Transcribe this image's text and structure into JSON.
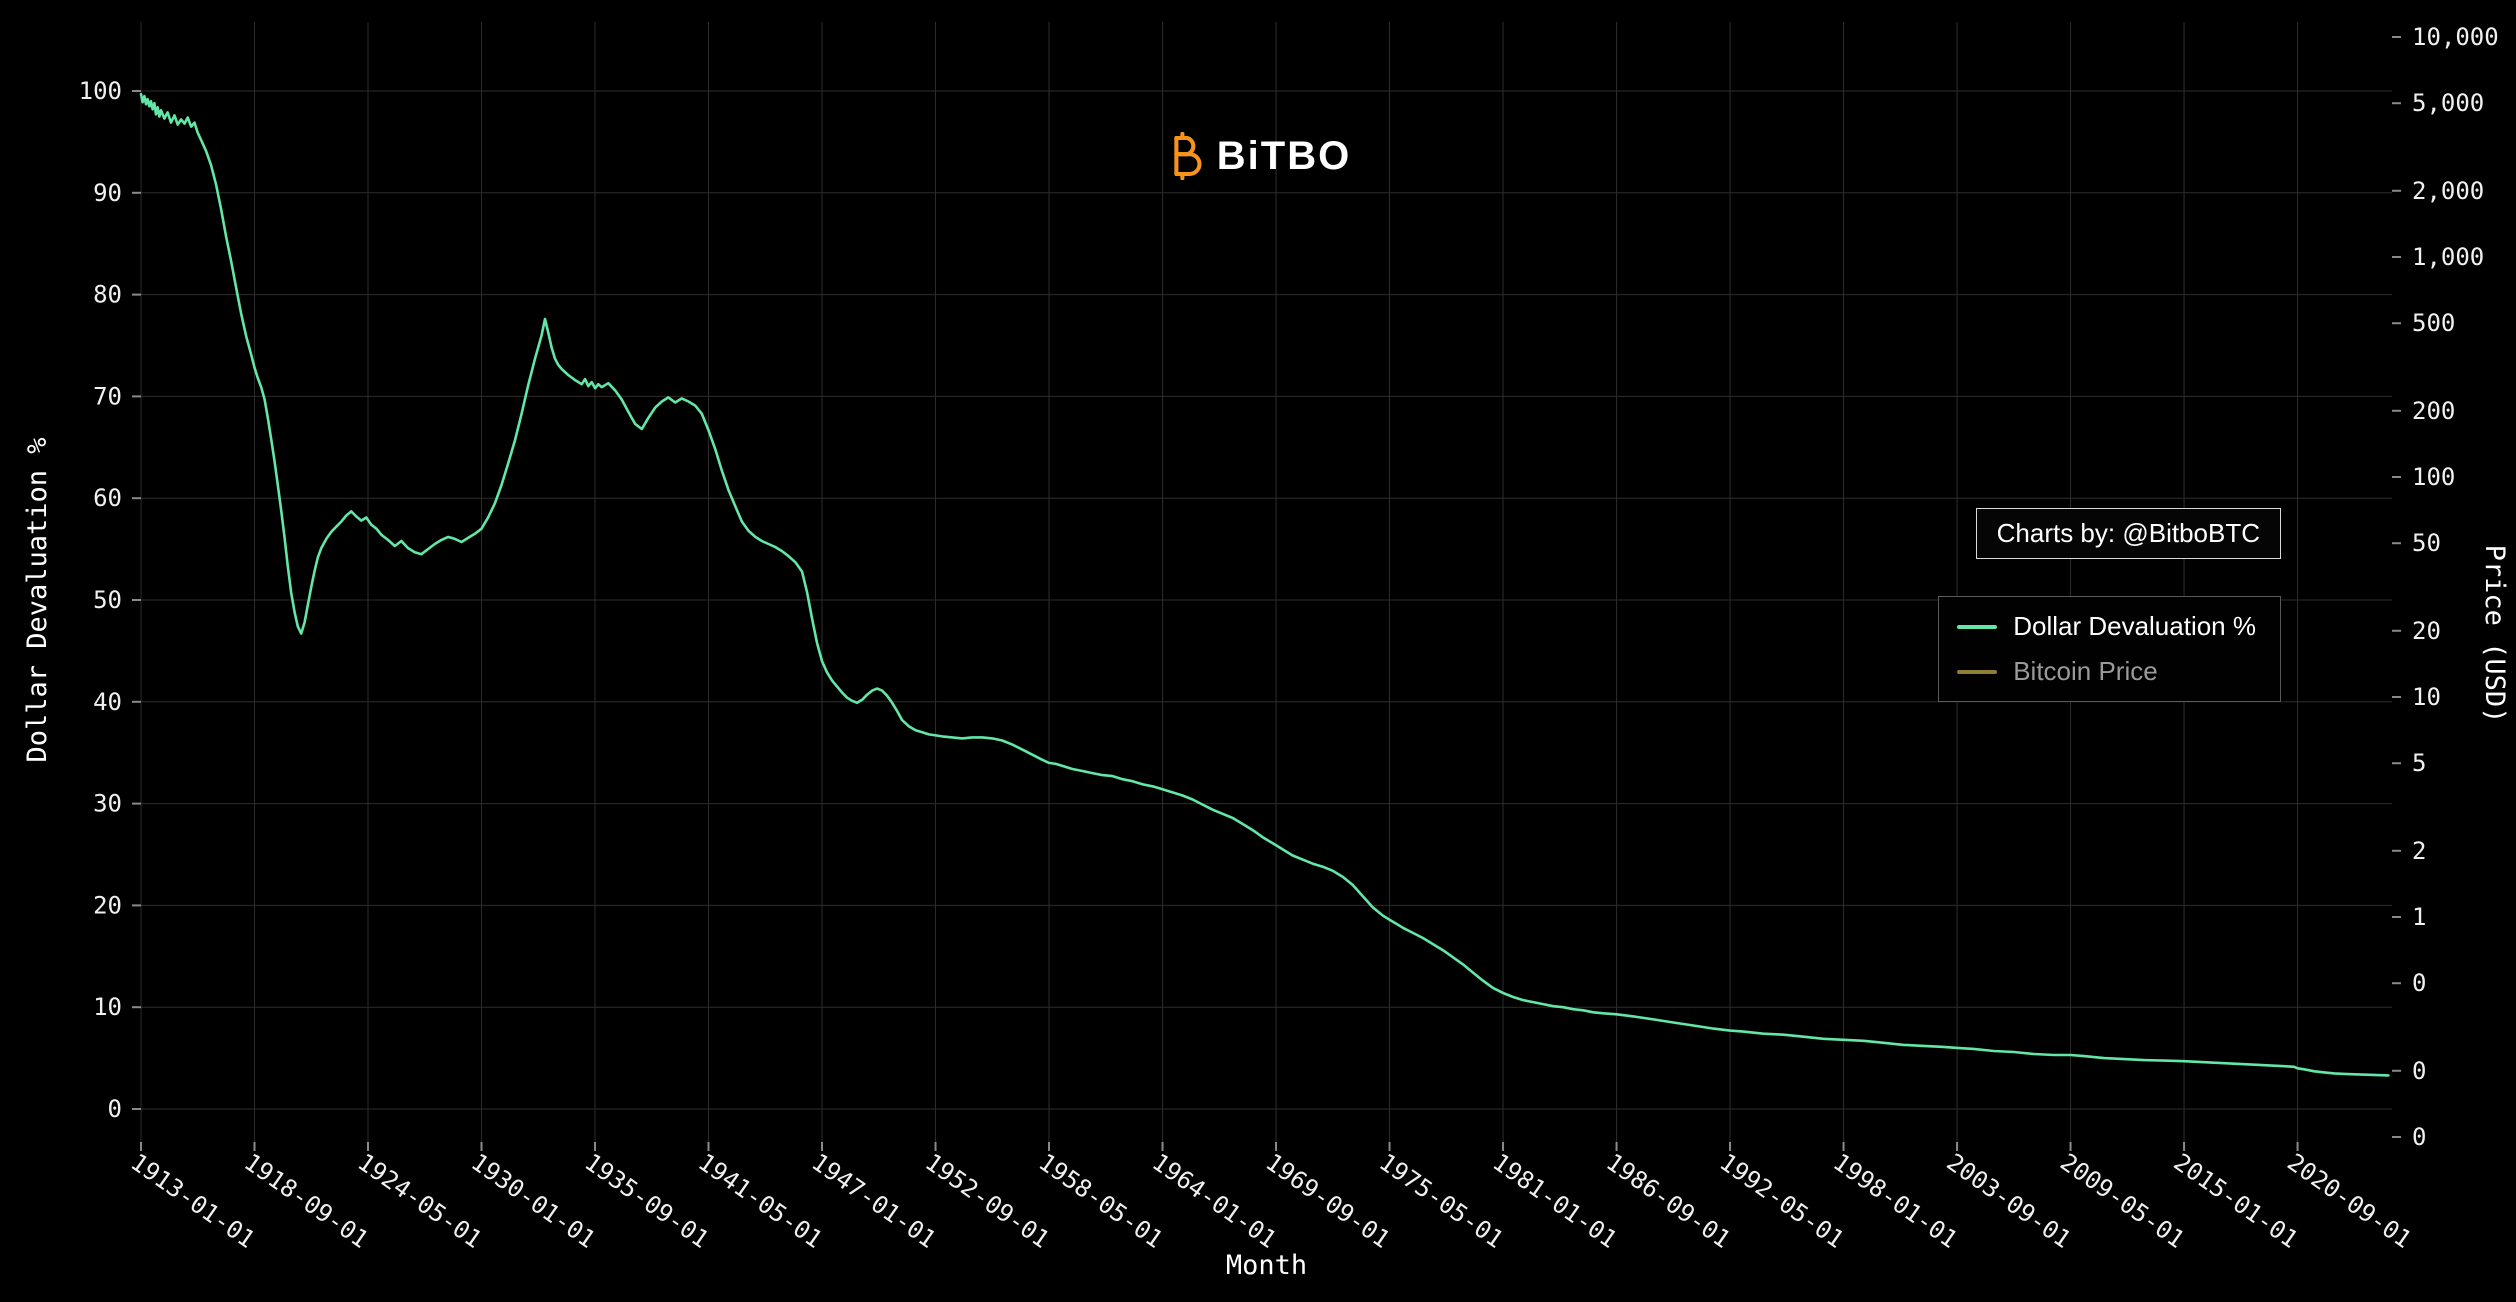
{
  "header": {
    "logo_text": "BiTBO",
    "logo_color": "#f7931a"
  },
  "attribution": {
    "label": "Charts by: @BitboBTC"
  },
  "legend": {
    "position": "right",
    "items": [
      {
        "label": "Dollar Devaluation %",
        "color": "#63e6a6",
        "text_color": "#ffffff",
        "active": true
      },
      {
        "label": "Bitcoin Price",
        "color": "#8f7c35",
        "text_color": "#9a9a9a",
        "active": false
      }
    ]
  },
  "chart_data": {
    "type": "line",
    "title": "",
    "background": "#000000",
    "grid": true,
    "grid_color": "#2d2d2d",
    "text_color": "#f0f0f0",
    "xlabel": "Month",
    "x_axis": {
      "label": "Month",
      "tick_labels": [
        "1913-01-01",
        "1918-09-01",
        "1924-05-01",
        "1930-01-01",
        "1935-09-01",
        "1941-05-01",
        "1947-01-01",
        "1952-09-01",
        "1958-05-01",
        "1964-01-01",
        "1969-09-01",
        "1975-05-01",
        "1981-01-01",
        "1986-09-01",
        "1992-05-01",
        "1998-01-01",
        "2003-09-01",
        "2009-05-01",
        "2015-01-01",
        "2020-09-01"
      ],
      "tick_years": [
        1913.0,
        1918.667,
        1924.333,
        1930.0,
        1935.667,
        1941.333,
        1947.0,
        1952.667,
        1958.333,
        1964.0,
        1969.667,
        1975.333,
        1981.0,
        1986.667,
        1992.333,
        1998.0,
        2003.667,
        2009.333,
        2015.0,
        2020.667
      ],
      "range_years": [
        1913.0,
        2025.4
      ]
    },
    "left_axis": {
      "label": "Dollar Devaluation %",
      "ticks": [
        0,
        10,
        20,
        30,
        40,
        50,
        60,
        70,
        80,
        90,
        100
      ],
      "range": [
        0,
        100
      ]
    },
    "right_axis": {
      "label": "Price (USD)",
      "scale": "log",
      "tick_labels": [
        "10,000",
        "5,000",
        "2,000",
        "1,000",
        "500",
        "200",
        "100",
        "50",
        "20",
        "10",
        "5",
        "2",
        "1",
        "0",
        "0",
        "0"
      ],
      "tick_values": [
        10000,
        5000,
        2000,
        1000,
        500,
        200,
        100,
        50,
        20,
        10,
        5,
        2,
        1,
        0.5,
        0.2,
        0.1
      ]
    },
    "series": [
      {
        "name": "Dollar Devaluation %",
        "color": "#63e6a6",
        "visible": true,
        "axis": "left",
        "points": [
          [
            1913.0,
            99.7
          ],
          [
            1913.08,
            98.9
          ],
          [
            1913.17,
            99.5
          ],
          [
            1913.25,
            98.7
          ],
          [
            1913.33,
            99.2
          ],
          [
            1913.42,
            98.5
          ],
          [
            1913.5,
            99.0
          ],
          [
            1913.58,
            98.2
          ],
          [
            1913.67,
            98.8
          ],
          [
            1913.75,
            97.7
          ],
          [
            1913.83,
            98.4
          ],
          [
            1913.92,
            97.5
          ],
          [
            1914.0,
            98.1
          ],
          [
            1914.17,
            97.3
          ],
          [
            1914.33,
            97.9
          ],
          [
            1914.5,
            96.9
          ],
          [
            1914.67,
            97.6
          ],
          [
            1914.83,
            96.7
          ],
          [
            1915.0,
            97.2
          ],
          [
            1915.17,
            96.8
          ],
          [
            1915.33,
            97.4
          ],
          [
            1915.5,
            96.5
          ],
          [
            1915.67,
            96.9
          ],
          [
            1915.83,
            95.9
          ],
          [
            1916.0,
            95.2
          ],
          [
            1916.25,
            94.1
          ],
          [
            1916.5,
            92.7
          ],
          [
            1916.75,
            90.8
          ],
          [
            1917.0,
            88.4
          ],
          [
            1917.25,
            85.7
          ],
          [
            1917.5,
            83.3
          ],
          [
            1917.75,
            80.7
          ],
          [
            1918.0,
            78.1
          ],
          [
            1918.25,
            75.9
          ],
          [
            1918.5,
            74.1
          ],
          [
            1918.67,
            72.8
          ],
          [
            1918.83,
            71.8
          ],
          [
            1919.0,
            70.9
          ],
          [
            1919.17,
            69.7
          ],
          [
            1919.33,
            67.9
          ],
          [
            1919.5,
            65.8
          ],
          [
            1919.67,
            63.6
          ],
          [
            1919.83,
            61.3
          ],
          [
            1920.0,
            58.8
          ],
          [
            1920.17,
            56.1
          ],
          [
            1920.33,
            53.3
          ],
          [
            1920.5,
            50.7
          ],
          [
            1920.67,
            48.8
          ],
          [
            1920.83,
            47.4
          ],
          [
            1921.0,
            46.7
          ],
          [
            1921.17,
            47.8
          ],
          [
            1921.33,
            49.5
          ],
          [
            1921.5,
            51.3
          ],
          [
            1921.67,
            52.9
          ],
          [
            1921.83,
            54.2
          ],
          [
            1922.0,
            55.1
          ],
          [
            1922.25,
            56.0
          ],
          [
            1922.5,
            56.7
          ],
          [
            1922.75,
            57.2
          ],
          [
            1923.0,
            57.7
          ],
          [
            1923.25,
            58.3
          ],
          [
            1923.5,
            58.7
          ],
          [
            1923.75,
            58.2
          ],
          [
            1924.0,
            57.8
          ],
          [
            1924.25,
            58.1
          ],
          [
            1924.5,
            57.4
          ],
          [
            1924.75,
            57.0
          ],
          [
            1925.0,
            56.4
          ],
          [
            1925.33,
            55.9
          ],
          [
            1925.67,
            55.3
          ],
          [
            1926.0,
            55.8
          ],
          [
            1926.33,
            55.1
          ],
          [
            1926.67,
            54.7
          ],
          [
            1927.0,
            54.5
          ],
          [
            1927.33,
            55.0
          ],
          [
            1927.67,
            55.5
          ],
          [
            1928.0,
            55.9
          ],
          [
            1928.33,
            56.2
          ],
          [
            1928.67,
            56.0
          ],
          [
            1929.0,
            55.7
          ],
          [
            1929.33,
            56.1
          ],
          [
            1929.67,
            56.5
          ],
          [
            1930.0,
            57.0
          ],
          [
            1930.33,
            58.1
          ],
          [
            1930.67,
            59.5
          ],
          [
            1931.0,
            61.3
          ],
          [
            1931.33,
            63.4
          ],
          [
            1931.67,
            65.7
          ],
          [
            1932.0,
            68.3
          ],
          [
            1932.33,
            71.1
          ],
          [
            1932.67,
            73.7
          ],
          [
            1933.0,
            76.0
          ],
          [
            1933.17,
            77.6
          ],
          [
            1933.33,
            76.3
          ],
          [
            1933.5,
            74.8
          ],
          [
            1933.67,
            73.7
          ],
          [
            1933.83,
            73.1
          ],
          [
            1934.0,
            72.7
          ],
          [
            1934.33,
            72.1
          ],
          [
            1934.67,
            71.6
          ],
          [
            1935.0,
            71.2
          ],
          [
            1935.17,
            71.7
          ],
          [
            1935.33,
            71.0
          ],
          [
            1935.5,
            71.4
          ],
          [
            1935.67,
            70.8
          ],
          [
            1935.83,
            71.2
          ],
          [
            1936.0,
            70.9
          ],
          [
            1936.33,
            71.3
          ],
          [
            1936.67,
            70.6
          ],
          [
            1937.0,
            69.7
          ],
          [
            1937.33,
            68.5
          ],
          [
            1937.67,
            67.3
          ],
          [
            1938.0,
            66.8
          ],
          [
            1938.33,
            67.9
          ],
          [
            1938.67,
            68.9
          ],
          [
            1939.0,
            69.5
          ],
          [
            1939.33,
            69.9
          ],
          [
            1939.67,
            69.4
          ],
          [
            1940.0,
            69.8
          ],
          [
            1940.33,
            69.5
          ],
          [
            1940.67,
            69.1
          ],
          [
            1941.0,
            68.3
          ],
          [
            1941.33,
            66.7
          ],
          [
            1941.67,
            64.8
          ],
          [
            1942.0,
            62.7
          ],
          [
            1942.33,
            60.8
          ],
          [
            1942.67,
            59.2
          ],
          [
            1943.0,
            57.7
          ],
          [
            1943.33,
            56.8
          ],
          [
            1943.67,
            56.2
          ],
          [
            1944.0,
            55.8
          ],
          [
            1944.33,
            55.5
          ],
          [
            1944.67,
            55.2
          ],
          [
            1945.0,
            54.8
          ],
          [
            1945.33,
            54.3
          ],
          [
            1945.67,
            53.7
          ],
          [
            1946.0,
            52.8
          ],
          [
            1946.25,
            50.8
          ],
          [
            1946.5,
            48.2
          ],
          [
            1946.75,
            45.8
          ],
          [
            1947.0,
            44.0
          ],
          [
            1947.25,
            42.9
          ],
          [
            1947.5,
            42.1
          ],
          [
            1947.75,
            41.5
          ],
          [
            1948.0,
            40.9
          ],
          [
            1948.25,
            40.4
          ],
          [
            1948.5,
            40.1
          ],
          [
            1948.75,
            39.9
          ],
          [
            1949.0,
            40.2
          ],
          [
            1949.25,
            40.7
          ],
          [
            1949.5,
            41.1
          ],
          [
            1949.75,
            41.3
          ],
          [
            1950.0,
            41.1
          ],
          [
            1950.25,
            40.6
          ],
          [
            1950.5,
            39.9
          ],
          [
            1950.75,
            39.1
          ],
          [
            1951.0,
            38.2
          ],
          [
            1951.33,
            37.6
          ],
          [
            1951.67,
            37.2
          ],
          [
            1952.0,
            37.0
          ],
          [
            1952.33,
            36.8
          ],
          [
            1952.67,
            36.7
          ],
          [
            1953.0,
            36.6
          ],
          [
            1953.5,
            36.5
          ],
          [
            1954.0,
            36.4
          ],
          [
            1954.5,
            36.5
          ],
          [
            1955.0,
            36.5
          ],
          [
            1955.5,
            36.4
          ],
          [
            1956.0,
            36.2
          ],
          [
            1956.5,
            35.8
          ],
          [
            1957.0,
            35.3
          ],
          [
            1957.5,
            34.8
          ],
          [
            1958.0,
            34.3
          ],
          [
            1958.33,
            34.0
          ],
          [
            1958.67,
            33.9
          ],
          [
            1959.0,
            33.7
          ],
          [
            1959.5,
            33.4
          ],
          [
            1960.0,
            33.2
          ],
          [
            1960.5,
            33.0
          ],
          [
            1961.0,
            32.8
          ],
          [
            1961.5,
            32.7
          ],
          [
            1962.0,
            32.4
          ],
          [
            1962.5,
            32.2
          ],
          [
            1963.0,
            31.9
          ],
          [
            1963.5,
            31.7
          ],
          [
            1964.0,
            31.4
          ],
          [
            1964.5,
            31.1
          ],
          [
            1965.0,
            30.8
          ],
          [
            1965.5,
            30.4
          ],
          [
            1966.0,
            29.9
          ],
          [
            1966.5,
            29.4
          ],
          [
            1967.0,
            29.0
          ],
          [
            1967.5,
            28.6
          ],
          [
            1968.0,
            28.0
          ],
          [
            1968.5,
            27.4
          ],
          [
            1969.0,
            26.7
          ],
          [
            1969.67,
            25.9
          ],
          [
            1970.0,
            25.5
          ],
          [
            1970.5,
            24.9
          ],
          [
            1971.0,
            24.5
          ],
          [
            1971.5,
            24.1
          ],
          [
            1972.0,
            23.8
          ],
          [
            1972.5,
            23.4
          ],
          [
            1973.0,
            22.8
          ],
          [
            1973.5,
            22.0
          ],
          [
            1974.0,
            20.9
          ],
          [
            1974.5,
            19.8
          ],
          [
            1975.0,
            19.0
          ],
          [
            1975.33,
            18.6
          ],
          [
            1975.67,
            18.2
          ],
          [
            1976.0,
            17.8
          ],
          [
            1976.5,
            17.3
          ],
          [
            1977.0,
            16.8
          ],
          [
            1977.5,
            16.2
          ],
          [
            1978.0,
            15.6
          ],
          [
            1978.5,
            14.9
          ],
          [
            1979.0,
            14.2
          ],
          [
            1979.5,
            13.4
          ],
          [
            1980.0,
            12.6
          ],
          [
            1980.5,
            11.9
          ],
          [
            1981.0,
            11.4
          ],
          [
            1981.5,
            11.0
          ],
          [
            1982.0,
            10.7
          ],
          [
            1982.5,
            10.5
          ],
          [
            1983.0,
            10.3
          ],
          [
            1983.5,
            10.1
          ],
          [
            1984.0,
            10.0
          ],
          [
            1984.5,
            9.8
          ],
          [
            1985.0,
            9.7
          ],
          [
            1985.5,
            9.5
          ],
          [
            1986.0,
            9.4
          ],
          [
            1986.67,
            9.3
          ],
          [
            1987.5,
            9.1
          ],
          [
            1988.5,
            8.8
          ],
          [
            1989.5,
            8.5
          ],
          [
            1990.5,
            8.2
          ],
          [
            1991.5,
            7.9
          ],
          [
            1992.33,
            7.7
          ],
          [
            1993.0,
            7.6
          ],
          [
            1994.0,
            7.4
          ],
          [
            1995.0,
            7.3
          ],
          [
            1996.0,
            7.1
          ],
          [
            1997.0,
            6.9
          ],
          [
            1998.0,
            6.8
          ],
          [
            1999.0,
            6.7
          ],
          [
            2000.0,
            6.5
          ],
          [
            2001.0,
            6.3
          ],
          [
            2002.0,
            6.2
          ],
          [
            2003.0,
            6.1
          ],
          [
            2003.67,
            6.0
          ],
          [
            2004.5,
            5.9
          ],
          [
            2005.5,
            5.7
          ],
          [
            2006.5,
            5.6
          ],
          [
            2007.5,
            5.4
          ],
          [
            2008.5,
            5.3
          ],
          [
            2009.33,
            5.3
          ],
          [
            2010.0,
            5.2
          ],
          [
            2011.0,
            5.0
          ],
          [
            2012.0,
            4.9
          ],
          [
            2013.0,
            4.8
          ],
          [
            2014.0,
            4.75
          ],
          [
            2015.0,
            4.7
          ],
          [
            2016.0,
            4.6
          ],
          [
            2017.0,
            4.5
          ],
          [
            2018.0,
            4.4
          ],
          [
            2019.0,
            4.3
          ],
          [
            2020.0,
            4.2
          ],
          [
            2020.5,
            4.15
          ],
          [
            2020.67,
            4.0
          ],
          [
            2021.0,
            3.9
          ],
          [
            2021.5,
            3.7
          ],
          [
            2022.0,
            3.6
          ],
          [
            2022.5,
            3.5
          ],
          [
            2023.0,
            3.45
          ],
          [
            2023.7,
            3.4
          ],
          [
            2025.2,
            3.3
          ]
        ]
      },
      {
        "name": "Bitcoin Price",
        "color": "#8f7c35",
        "visible": false,
        "axis": "right",
        "points": []
      }
    ]
  }
}
